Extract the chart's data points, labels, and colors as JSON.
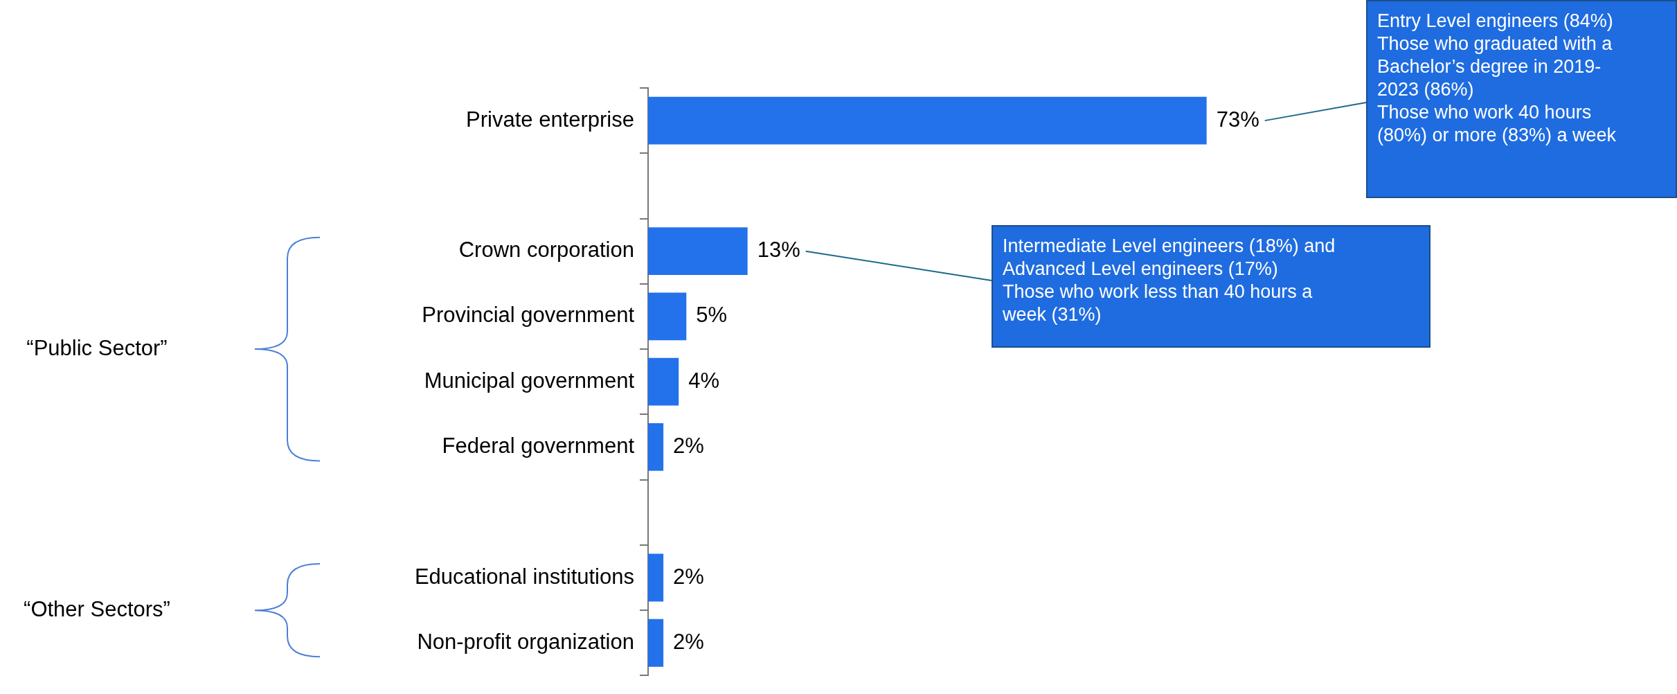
{
  "chart_data": {
    "type": "bar",
    "orientation": "horizontal",
    "categories": [
      "Private enterprise",
      null,
      "Crown corporation",
      "Provincial government",
      "Municipal government",
      "Federal government",
      null,
      "Educational institutions",
      "Non-profit organization"
    ],
    "values": [
      73,
      null,
      13,
      5,
      4,
      2,
      null,
      2,
      2
    ],
    "value_labels": [
      "73%",
      null,
      "13%",
      "5%",
      "4%",
      "2%",
      null,
      "2%",
      "2%"
    ],
    "color": "#2371eb",
    "annotations": [
      "Entry Level engineers (84%)\nThose who graduated with a\nBachelor’s degree in 2019-\n2023 (86%)\nThose who work 40 hours\n(80%) or more (83%) a week",
      "Intermediate Level engineers (18%) and\nAdvanced Level engineers (17%)\nThose who work less than 40 hours a\nweek (31%)",
      "“Public Sector”",
      "“Other Sectors”"
    ],
    "grid": false,
    "legend": false
  }
}
